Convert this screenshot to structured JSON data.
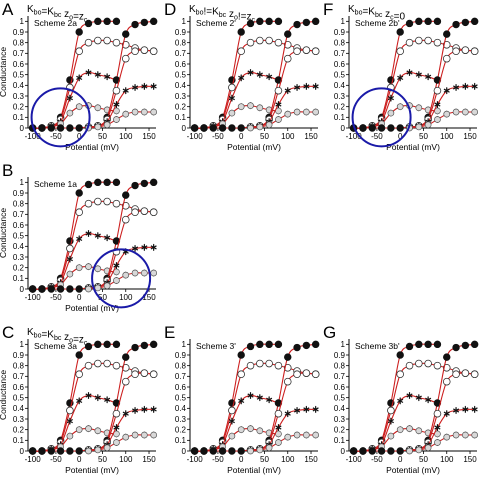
{
  "figure": {
    "panels": [
      {
        "id": "A",
        "letter": "A",
        "header": "K_bo=K_bc  z_o=z_c",
        "scheme": "Scheme 2a",
        "circle": {
          "x": -40,
          "y": 0.1
        }
      },
      {
        "id": "D",
        "letter": "D",
        "header": "K_bo!=K_bc  z_o!=z_c",
        "scheme": "Scheme 2'",
        "circle": null
      },
      {
        "id": "F",
        "letter": "F",
        "header": "K_bo=K_bc  z_c=0",
        "scheme": "Scheme 2b'",
        "circle": {
          "x": -40,
          "y": 0.1
        }
      },
      {
        "id": "B",
        "letter": "B",
        "header": "",
        "scheme": "Scheme 1a",
        "circle": {
          "x": 90,
          "y": 0.1
        }
      },
      {
        "id": "C",
        "letter": "C",
        "header": "K_bo=K_bc  z_o=z_c",
        "scheme": "Scheme 3a",
        "circle": null
      },
      {
        "id": "E",
        "letter": "E",
        "header": "",
        "scheme": "Scheme 3'",
        "circle": null
      },
      {
        "id": "G",
        "letter": "G",
        "header": "",
        "scheme": "Scheme 3b'",
        "circle": null
      }
    ],
    "header_parts": {
      "A": [
        "K",
        "bo",
        "=K",
        "bc",
        "  z",
        "o",
        "=z",
        "c"
      ],
      "D": [
        "K",
        "bo",
        "!=K",
        "bc",
        "  z",
        "o",
        "!=z",
        "c"
      ],
      "F": [
        "K",
        "bo",
        "=K",
        "bc",
        "  z",
        "c",
        "=0",
        ""
      ],
      "C": [
        "K",
        "bo",
        "=K",
        "bc",
        "  z",
        "o",
        "=z",
        "c"
      ]
    },
    "colors": {
      "fit": "#cc1f1f",
      "axis": "#000000",
      "circle": "#1a1aa8",
      "marker_dark": "#111111",
      "marker_open": "#ffffff",
      "marker_grey": "#888888"
    }
  },
  "chart_data": [
    {
      "type": "scatter",
      "panel": "A",
      "xlabel": "Potential (mV)",
      "ylabel": "Conductance",
      "xlim": [
        -110,
        165
      ],
      "ylim": [
        0,
        1.05
      ],
      "xticks": [
        -100,
        -50,
        0,
        50,
        100,
        150
      ],
      "yticks": [
        0,
        0.1,
        0.2,
        0.3,
        0.4,
        0.5,
        0.6,
        0.7,
        0.8,
        0.9,
        1
      ],
      "grid": false,
      "series_groups": [
        {
          "name": "left",
          "v_half_shift": -20
        },
        {
          "name": "right",
          "v_half_shift": 80
        }
      ],
      "series": [
        {
          "group": "left",
          "marker": "filled-circle",
          "values": [
            [
              -100,
              0.0
            ],
            [
              -80,
              0.0
            ],
            [
              -60,
              0.02
            ],
            [
              -40,
              0.1
            ],
            [
              -20,
              0.45
            ],
            [
              0,
              0.9
            ],
            [
              20,
              0.98
            ],
            [
              40,
              1.0
            ],
            [
              60,
              1.0
            ],
            [
              80,
              1.0
            ]
          ]
        },
        {
          "group": "left",
          "marker": "open-circle",
          "values": [
            [
              -100,
              0.0
            ],
            [
              -80,
              0.0
            ],
            [
              -60,
              0.02
            ],
            [
              -40,
              0.08
            ],
            [
              -20,
              0.38
            ],
            [
              0,
              0.72
            ],
            [
              20,
              0.8
            ],
            [
              40,
              0.82
            ],
            [
              60,
              0.82
            ],
            [
              80,
              0.8
            ],
            [
              100,
              0.78
            ],
            [
              120,
              0.75
            ],
            [
              140,
              0.73
            ],
            [
              160,
              0.72
            ]
          ]
        },
        {
          "group": "left",
          "marker": "asterisk",
          "values": [
            [
              -100,
              0.0
            ],
            [
              -80,
              0.0
            ],
            [
              -60,
              0.02
            ],
            [
              -40,
              0.06
            ],
            [
              -20,
              0.28
            ],
            [
              0,
              0.47
            ],
            [
              20,
              0.52
            ],
            [
              40,
              0.5
            ],
            [
              60,
              0.48
            ],
            [
              80,
              0.45
            ]
          ]
        },
        {
          "group": "left",
          "marker": "grey-circle",
          "values": [
            [
              -100,
              0.0
            ],
            [
              -80,
              0.0
            ],
            [
              -60,
              0.01
            ],
            [
              -40,
              0.04
            ],
            [
              -20,
              0.14
            ],
            [
              0,
              0.2
            ],
            [
              20,
              0.21
            ],
            [
              40,
              0.19
            ],
            [
              60,
              0.17
            ],
            [
              80,
              0.16
            ]
          ]
        },
        {
          "group": "right",
          "marker": "filled-circle",
          "values": [
            [
              -100,
              0.0
            ],
            [
              -80,
              0.0
            ],
            [
              -60,
              0.0
            ],
            [
              -40,
              0.0
            ],
            [
              -20,
              0.0
            ],
            [
              0,
              0.0
            ],
            [
              20,
              0.01
            ],
            [
              40,
              0.02
            ],
            [
              60,
              0.1
            ],
            [
              80,
              0.45
            ],
            [
              100,
              0.88
            ],
            [
              120,
              0.97
            ],
            [
              140,
              0.99
            ],
            [
              160,
              1.0
            ]
          ]
        },
        {
          "group": "right",
          "marker": "open-circle",
          "values": [
            [
              20,
              0.01
            ],
            [
              40,
              0.02
            ],
            [
              60,
              0.08
            ],
            [
              80,
              0.35
            ],
            [
              100,
              0.65
            ],
            [
              120,
              0.72
            ],
            [
              140,
              0.73
            ],
            [
              160,
              0.72
            ]
          ]
        },
        {
          "group": "right",
          "marker": "asterisk",
          "values": [
            [
              20,
              0.01
            ],
            [
              40,
              0.02
            ],
            [
              60,
              0.06
            ],
            [
              80,
              0.22
            ],
            [
              100,
              0.35
            ],
            [
              120,
              0.38
            ],
            [
              140,
              0.39
            ],
            [
              160,
              0.39
            ]
          ]
        },
        {
          "group": "right",
          "marker": "grey-circle",
          "values": [
            [
              20,
              0.0
            ],
            [
              40,
              0.01
            ],
            [
              60,
              0.03
            ],
            [
              80,
              0.08
            ],
            [
              100,
              0.13
            ],
            [
              120,
              0.15
            ],
            [
              140,
              0.15
            ],
            [
              160,
              0.15
            ]
          ]
        }
      ]
    }
  ]
}
